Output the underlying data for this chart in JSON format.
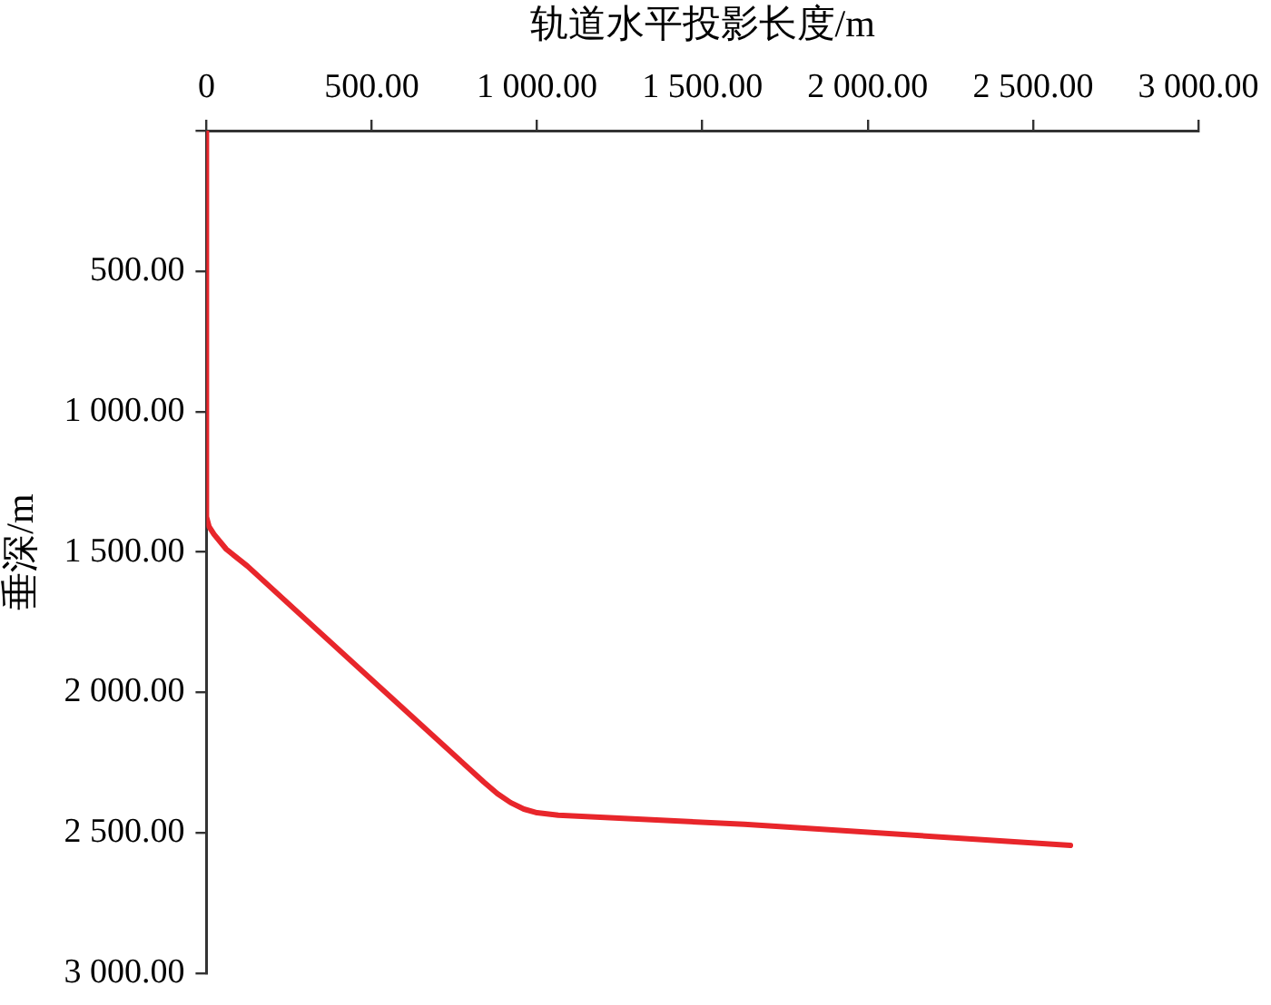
{
  "chart_data": {
    "type": "line",
    "xlabel": "轨道水平投影长度/m",
    "ylabel": "垂深/m",
    "series": [
      {
        "color": "#e8262b",
        "x": [
          0,
          0,
          8,
          23,
          60,
          124,
          315,
          839,
          880,
          920,
          960,
          1000,
          1064,
          1627,
          2613
        ],
        "values": [
          0,
          1375,
          1410,
          1437,
          1490,
          1550,
          1756,
          2319,
          2360,
          2392,
          2415,
          2428,
          2437,
          2469,
          2544
        ]
      }
    ],
    "xlim": [
      0,
      3000
    ],
    "xticks": [
      {
        "value": 0,
        "label": "0"
      },
      {
        "value": 500,
        "label": "500.00"
      },
      {
        "value": 1000,
        "label": "1 000.00"
      },
      {
        "value": 1500,
        "label": "1 500.00"
      },
      {
        "value": 2000,
        "label": "2 000.00"
      },
      {
        "value": 2500,
        "label": "2 500.00"
      },
      {
        "value": 3000,
        "label": "3 000.00"
      }
    ],
    "ylim": [
      3000,
      0
    ],
    "yticks": [
      {
        "value": 0,
        "label": null
      },
      {
        "value": 500,
        "label": "500.00"
      },
      {
        "value": 1000,
        "label": "1 000.00"
      },
      {
        "value": 1500,
        "label": "1 500.00"
      },
      {
        "value": 2000,
        "label": "2 000.00"
      },
      {
        "value": 2500,
        "label": "2 500.00"
      },
      {
        "value": 3000,
        "label": "3 000.00"
      }
    ],
    "grid": false,
    "legend": false,
    "marker": "none",
    "line_style": "solid"
  }
}
